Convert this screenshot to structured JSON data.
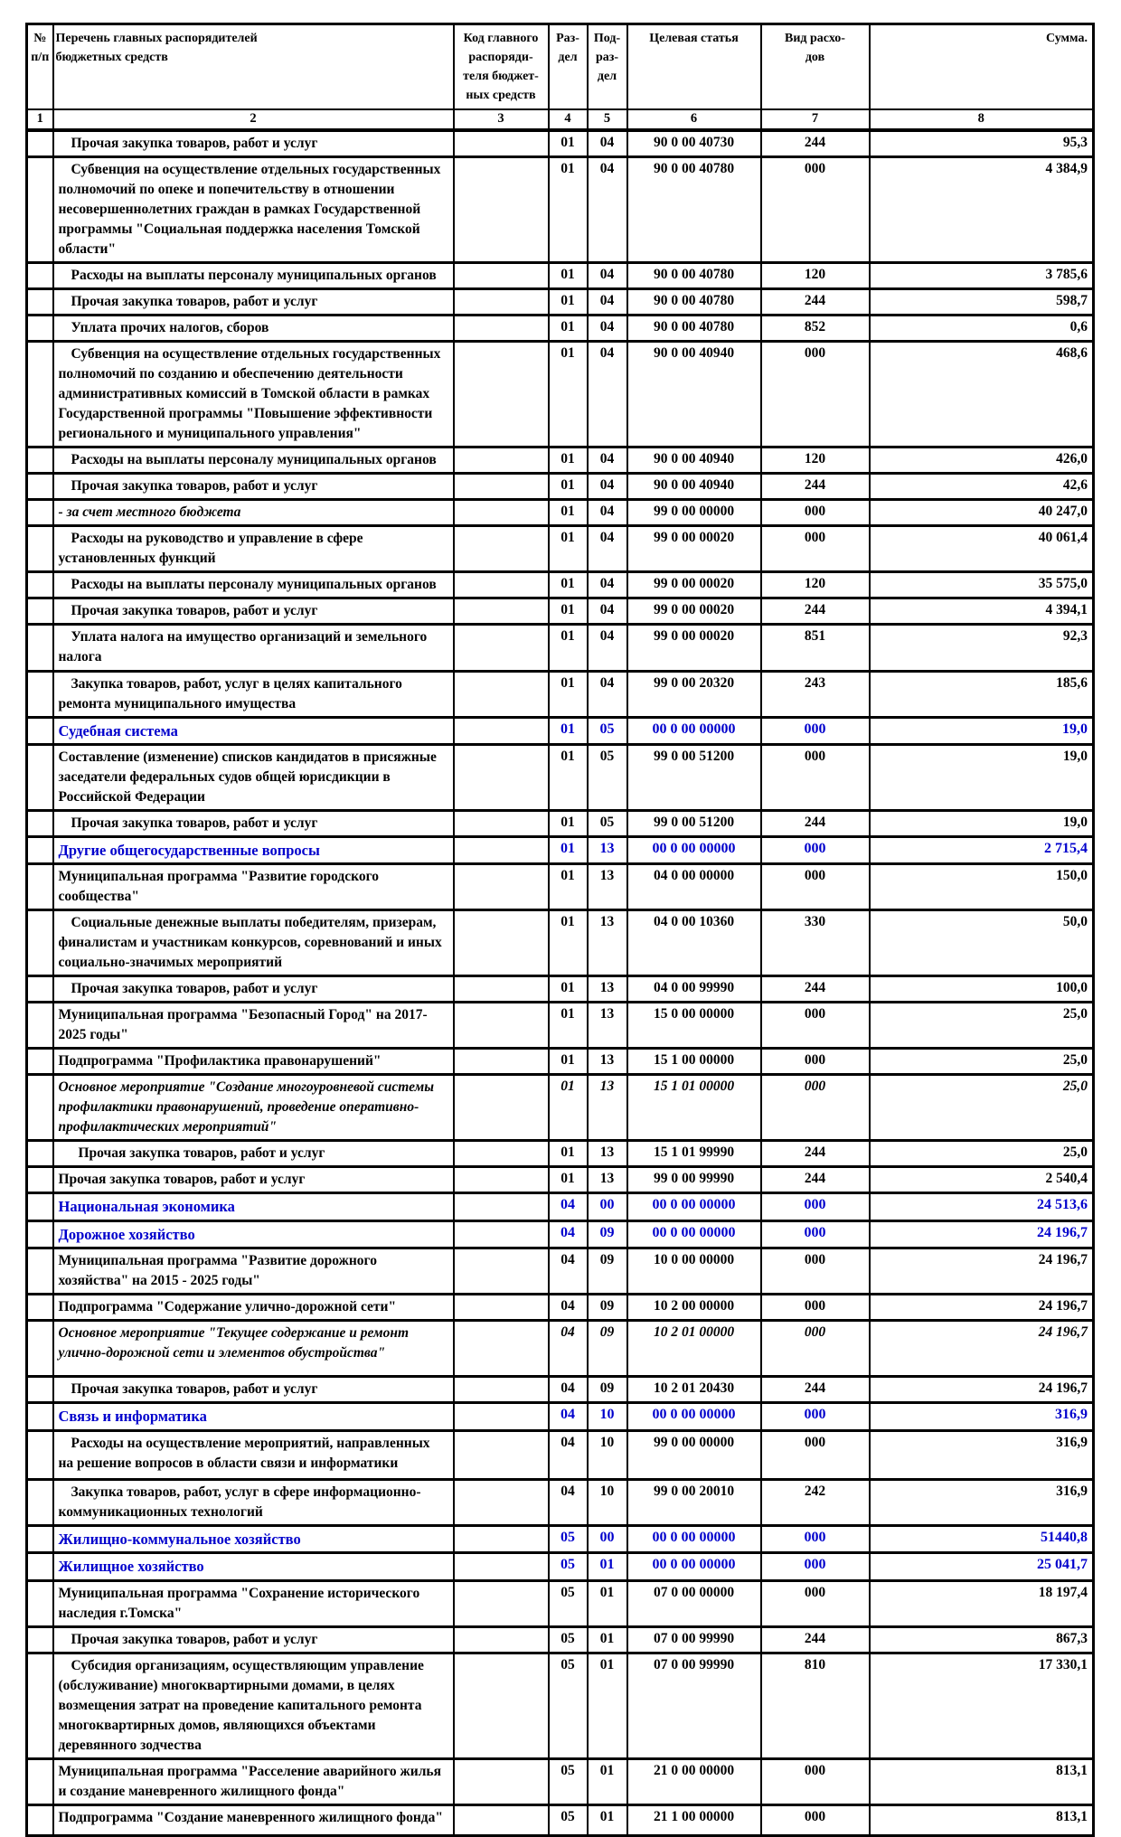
{
  "colors": {
    "accent_blue": "#0000cc",
    "text": "#000000"
  },
  "table": {
    "header": {
      "c1": "№\nп/п",
      "c2": "Перечень главных распорядителей\nбюджетных средств",
      "c3": "Код главного\nраспоряди-\nтеля бюджет-\nных средств",
      "c4": "Раз-\nдел",
      "c5": "Под-\nраз-\nдел",
      "c6": "Целевая статья",
      "c7": "Вид расхо-\nдов",
      "c8": "Сумма."
    },
    "col_numbers": [
      "1",
      "2",
      "3",
      "4",
      "5",
      "6",
      "7",
      "8"
    ],
    "rows": [
      {
        "style": "ind",
        "label": "Прочая закупка товаров, работ и услуг",
        "rz": "01",
        "pr": "04",
        "cs": "90 0 00 40730",
        "vr": "244",
        "sum": "95,3"
      },
      {
        "style": "ind",
        "label": "Субвенция на осуществление отдельных государственных полномочий по опеке и попечительству в  отношении несовершеннолетних граждан в рамках Государственной программы \"Социальная поддержка населения Томской области\"",
        "rz": "01",
        "pr": "04",
        "cs": "90 0 00 40780",
        "vr": "000",
        "sum": "4 384,9"
      },
      {
        "style": "ind",
        "label": "Расходы на выплаты персоналу муниципальных органов",
        "rz": "01",
        "pr": "04",
        "cs": "90 0 00 40780",
        "vr": "120",
        "sum": "3 785,6"
      },
      {
        "style": "ind",
        "label": "Прочая закупка товаров, работ и услуг",
        "rz": "01",
        "pr": "04",
        "cs": "90 0 00 40780",
        "vr": "244",
        "sum": "598,7"
      },
      {
        "style": "ind",
        "label": "Уплата прочих налогов, сборов",
        "rz": "01",
        "pr": "04",
        "cs": "90 0 00 40780",
        "vr": "852",
        "sum": "0,6"
      },
      {
        "style": "ind",
        "label": "Субвенция на осуществление отдельных государственных полномочий по созданию и обеспечению деятельности административных комиссий в Томской области в рамках Государственной программы \"Повышение эффективности регионального и муниципального управления\"",
        "rz": "01",
        "pr": "04",
        "cs": "90 0 00 40940",
        "vr": "000",
        "sum": "468,6"
      },
      {
        "style": "ind",
        "label": "Расходы на выплаты персоналу муниципальных органов",
        "rz": "01",
        "pr": "04",
        "cs": "90 0 00 40940",
        "vr": "120",
        "sum": "426,0"
      },
      {
        "style": "ind",
        "label": "Прочая закупка товаров, работ и услуг",
        "rz": "01",
        "pr": "04",
        "cs": "90 0 00 40940",
        "vr": "244",
        "sum": "42,6"
      },
      {
        "style": "it",
        "label": "- за счет местного бюджета",
        "rz": "01",
        "pr": "04",
        "cs": "99 0 00 00000",
        "vr": "000",
        "sum": "40 247,0"
      },
      {
        "style": "ind",
        "label": "Расходы на руководство и управление в сфере установленных функций",
        "rz": "01",
        "pr": "04",
        "cs": "99 0 00 00020",
        "vr": "000",
        "sum": "40 061,4"
      },
      {
        "style": "ind",
        "label": "Расходы на выплаты персоналу муниципальных органов",
        "rz": "01",
        "pr": "04",
        "cs": "99 0 00 00020",
        "vr": "120",
        "sum": "35 575,0"
      },
      {
        "style": "ind",
        "label": "Прочая закупка товаров, работ и услуг",
        "rz": "01",
        "pr": "04",
        "cs": "99 0 00 00020",
        "vr": "244",
        "sum": "4 394,1"
      },
      {
        "style": "ind",
        "label": "Уплата налога на имущество организаций и земельного налога",
        "rz": "01",
        "pr": "04",
        "cs": "99 0 00 00020",
        "vr": "851",
        "sum": "92,3"
      },
      {
        "style": "ind",
        "label": "Закупка товаров, работ, услуг в целях капитального ремонта муниципального имущества",
        "rz": "01",
        "pr": "04",
        "cs": "99 0 00 20320",
        "vr": "243",
        "sum": "185,6"
      },
      {
        "style": "sec",
        "label": "Судебная система",
        "rz": "01",
        "pr": "05",
        "cs": "00 0 00 00000",
        "vr": "000",
        "sum": "19,0"
      },
      {
        "style": "plain",
        "label": "Составление (изменение) списков кандидатов в присяжные заседатели федеральных судов общей юрисдикции в Российской Федерации",
        "rz": "01",
        "pr": "05",
        "cs": "99 0 00 51200",
        "vr": "000",
        "sum": "19,0"
      },
      {
        "style": "ind",
        "label": "Прочая закупка товаров, работ и услуг",
        "rz": "01",
        "pr": "05",
        "cs": "99 0 00 51200",
        "vr": "244",
        "sum": "19,0"
      },
      {
        "style": "sec",
        "label": "Другие общегосударственные вопросы",
        "rz": "01",
        "pr": "13",
        "cs": "00 0 00 00000",
        "vr": "000",
        "sum": "2 715,4"
      },
      {
        "style": "plain",
        "label": "Муниципальная программа \"Развитие городского сообщества\"",
        "rz": "01",
        "pr": "13",
        "cs": "04 0 00 00000",
        "vr": "000",
        "sum": "150,0"
      },
      {
        "style": "ind",
        "label": "Социальные денежные выплаты победителям, призерам, финалистам и участникам конкурсов, соревнований и иных социально-значимых мероприятий",
        "rz": "01",
        "pr": "13",
        "cs": "04 0 00 10360",
        "vr": "330",
        "sum": "50,0"
      },
      {
        "style": "ind",
        "label": "Прочая закупка товаров, работ и услуг",
        "rz": "01",
        "pr": "13",
        "cs": "04 0 00 99990",
        "vr": "244",
        "sum": "100,0"
      },
      {
        "style": "plain",
        "label": "Муниципальная программа \"Безопасный Город\" на 2017-2025 годы\"",
        "rz": "01",
        "pr": "13",
        "cs": "15 0 00 00000",
        "vr": "000",
        "sum": "25,0"
      },
      {
        "style": "plain",
        "label": "Подпрограмма \"Профилактика правонарушений\"",
        "rz": "01",
        "pr": "13",
        "cs": "15 1 00 00000",
        "vr": "000",
        "sum": "25,0"
      },
      {
        "style": "itall",
        "label": "Основное мероприятие \"Создание многоуровневой системы профилактики правонарушений, проведение оперативно-профилактических мероприятий\"",
        "rz": "01",
        "pr": "13",
        "cs": "15 1 01 00000",
        "vr": "000",
        "sum": "25,0"
      },
      {
        "style": "ind2",
        "label": "Прочая закупка товаров, работ и услуг",
        "rz": "01",
        "pr": "13",
        "cs": "15 1 01 99990",
        "vr": "244",
        "sum": "25,0"
      },
      {
        "style": "plain",
        "label": "Прочая закупка товаров, работ и услуг",
        "rz": "01",
        "pr": "13",
        "cs": "99 0 00 99990",
        "vr": "244",
        "sum": "2 540,4"
      },
      {
        "style": "sec",
        "label": "Национальная экономика",
        "rz": "04",
        "pr": "00",
        "cs": "00 0 00 00000",
        "vr": "000",
        "sum": "24 513,6"
      },
      {
        "style": "sec",
        "label": "Дорожное хозяйство",
        "rz": "04",
        "pr": "09",
        "cs": "00 0 00 00000",
        "vr": "000",
        "sum": "24 196,7"
      },
      {
        "style": "plain",
        "label": "Муниципальная программа \"Развитие дорожного хозяйства\" на 2015 - 2025 годы\"",
        "rz": "04",
        "pr": "09",
        "cs": "10 0 00 00000",
        "vr": "000",
        "sum": "24 196,7"
      },
      {
        "style": "plain",
        "label": "Подпрограмма \"Содержание улично-дорожной сети\"",
        "rz": "04",
        "pr": "09",
        "cs": "10 2 00 00000",
        "vr": "000",
        "sum": "24 196,7"
      },
      {
        "style": "itall",
        "label": "Основное мероприятие \"Текущее содержание и ремонт улично-дорожной сети и элементов обустройства\"",
        "rz": "04",
        "pr": "09",
        "cs": "10 2 01 00000",
        "vr": "000",
        "sum": "24 196,7"
      },
      {
        "style": "ind",
        "label": "Прочая закупка товаров, работ и услуг",
        "rz": "04",
        "pr": "09",
        "cs": "10 2 01 20430",
        "vr": "244",
        "sum": "24 196,7"
      },
      {
        "style": "sec",
        "label": "Связь и информатика",
        "rz": "04",
        "pr": "10",
        "cs": "00 0 00 00000",
        "vr": "000",
        "sum": "316,9"
      },
      {
        "style": "ind",
        "label": "Расходы на осуществление мероприятий, направленных на решение вопросов в области связи и информатики",
        "rz": "04",
        "pr": "10",
        "cs": "99 0 00 00000",
        "vr": "000",
        "sum": "316,9"
      },
      {
        "style": "ind",
        "label": "Закупка товаров, работ, услуг в сфере информационно-коммуникационных технологий",
        "rz": "04",
        "pr": "10",
        "cs": "99 0 00 20010",
        "vr": "242",
        "sum": "316,9"
      },
      {
        "style": "sec",
        "label": "Жилищно-коммунальное хозяйство",
        "rz": "05",
        "pr": "00",
        "cs": "00 0 00 00000",
        "vr": "000",
        "sum": "51440,8"
      },
      {
        "style": "sec",
        "label": "Жилищное хозяйство",
        "rz": "05",
        "pr": "01",
        "cs": "00 0 00 00000",
        "vr": "000",
        "sum": "25 041,7"
      },
      {
        "style": "plain",
        "label": "Муниципальная программа \"Сохранение исторического наследия г.Томска\"",
        "rz": "05",
        "pr": "01",
        "cs": "07 0 00 00000",
        "vr": "000",
        "sum": "18 197,4"
      },
      {
        "style": "ind",
        "label": "Прочая закупка товаров, работ и услуг",
        "rz": "05",
        "pr": "01",
        "cs": "07 0 00 99990",
        "vr": "244",
        "sum": "867,3"
      },
      {
        "style": "ind",
        "label": "Субсидия организациям, осуществляющим управление (обслуживание) многоквартирными домами, в целях возмещения затрат на проведение капитального ремонта многоквартирных домов, являющихся объектами деревянного зодчества",
        "rz": "05",
        "pr": "01",
        "cs": "07 0 00 99990",
        "vr": "810",
        "sum": "17 330,1"
      },
      {
        "style": "plain",
        "label": "Муниципальная программа \"Расселение аварийного жилья и создание маневренного жилищного фонда\"",
        "rz": "05",
        "pr": "01",
        "cs": "21 0 00 00000",
        "vr": "000",
        "sum": "813,1"
      },
      {
        "style": "plain",
        "label": "Подпрограмма \"Создание маневренного жилищного фонда\"",
        "rz": "05",
        "pr": "01",
        "cs": "21 1 00 00000",
        "vr": "000",
        "sum": "813,1"
      }
    ]
  }
}
